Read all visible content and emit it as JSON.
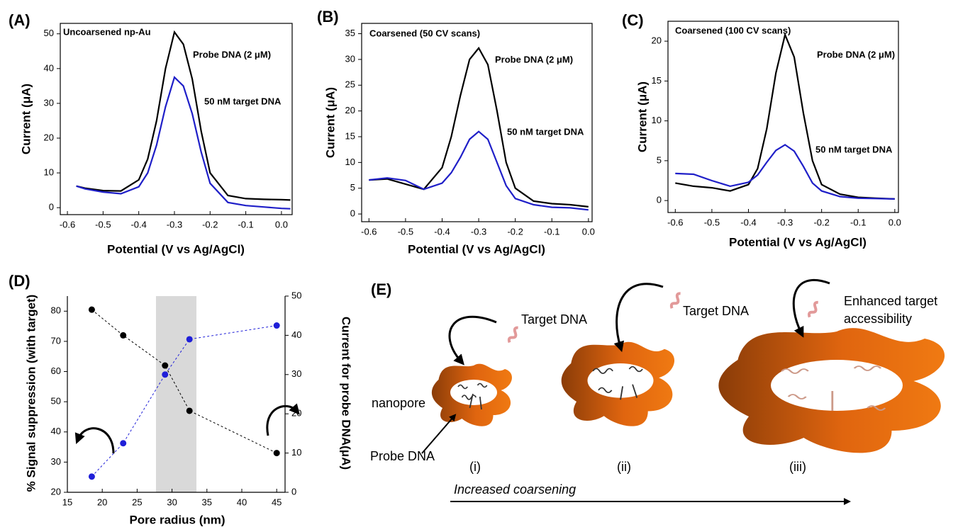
{
  "chart_data": [
    {
      "type": "line",
      "label": "(A)",
      "title": "Uncoarsened np-Au",
      "annotations": [
        "Probe DNA (2 μM)",
        "50 nM target DNA"
      ],
      "xlabel": "Potential (V vs Ag/AgCl)",
      "ylabel": "Current (μA)",
      "x": [
        -0.575,
        -0.55,
        -0.5,
        -0.45,
        -0.4,
        -0.375,
        -0.35,
        -0.325,
        -0.3,
        -0.275,
        -0.25,
        -0.225,
        -0.2,
        -0.15,
        -0.1,
        -0.05,
        0,
        0.025
      ],
      "series": [
        {
          "color": "#000000",
          "values": [
            6.2,
            5.6,
            4.9,
            4.8,
            8,
            14,
            25,
            40,
            50.5,
            47,
            37,
            22,
            10,
            3.5,
            2.6,
            2.4,
            2.3,
            2.2
          ]
        },
        {
          "color": "#1f1fc8",
          "values": [
            6.2,
            5.4,
            4.5,
            4.0,
            6,
            10,
            18,
            29,
            37.5,
            35,
            27,
            16,
            7,
            1.5,
            0.6,
            0.2,
            -0.2,
            -0.3
          ]
        }
      ],
      "xlim": [
        -0.62,
        0.03
      ],
      "ylim": [
        -2,
        53
      ],
      "xticks": [
        -0.6,
        -0.5,
        -0.4,
        -0.3,
        -0.2,
        -0.1,
        {
          "value": 0,
          "label": "0.0"
        }
      ],
      "yticks": [
        0,
        10,
        20,
        30,
        40,
        50
      ]
    },
    {
      "type": "line",
      "label": "(B)",
      "title": "Coarsened (50 CV scans)",
      "annotations": [
        "Probe DNA (2 μM)",
        "50 nM target DNA"
      ],
      "xlabel": "Potential (V vs Ag/AgCl)",
      "ylabel": "Current (μA)",
      "x": [
        -0.6,
        -0.55,
        -0.5,
        -0.45,
        -0.4,
        -0.375,
        -0.35,
        -0.325,
        -0.3,
        -0.275,
        -0.25,
        -0.225,
        -0.2,
        -0.15,
        -0.1,
        -0.05,
        0
      ],
      "series": [
        {
          "color": "#000000",
          "values": [
            6.6,
            6.8,
            5.8,
            4.8,
            9,
            15,
            23,
            30,
            32.2,
            29,
            20,
            10,
            5,
            2.5,
            2,
            1.8,
            1.4
          ]
        },
        {
          "color": "#1f1fc8",
          "values": [
            6.6,
            7,
            6.5,
            4.8,
            6,
            8,
            11,
            14.5,
            16,
            14.5,
            10,
            5.5,
            3,
            1.8,
            1.3,
            1.2,
            0.8
          ]
        }
      ],
      "xlim": [
        -0.62,
        0.01
      ],
      "ylim": [
        -1.5,
        37
      ],
      "xticks": [
        -0.6,
        -0.5,
        -0.4,
        -0.3,
        -0.2,
        -0.1,
        {
          "value": 0,
          "label": "0.0"
        }
      ],
      "yticks": [
        0,
        5,
        10,
        15,
        20,
        25,
        30,
        35
      ]
    },
    {
      "type": "line",
      "label": "(C)",
      "title": "Coarsened (100 CV scans)",
      "annotations": [
        "Probe DNA (2 μM)",
        "50 nM target DNA"
      ],
      "xlabel": "Potential (V vs Ag/AgCl)",
      "ylabel": "Current (μA)",
      "x": [
        -0.6,
        -0.55,
        -0.5,
        -0.45,
        -0.4,
        -0.375,
        -0.35,
        -0.325,
        -0.3,
        -0.275,
        -0.25,
        -0.225,
        -0.2,
        -0.15,
        -0.1,
        -0.05,
        0
      ],
      "series": [
        {
          "color": "#000000",
          "values": [
            2.2,
            1.8,
            1.6,
            1.2,
            2,
            4,
            9,
            16,
            20.8,
            18,
            11,
            5,
            2,
            0.8,
            0.4,
            0.3,
            0.2
          ]
        },
        {
          "color": "#1f1fc8",
          "values": [
            3.4,
            3.3,
            2.5,
            1.8,
            2.3,
            3.2,
            4.8,
            6.3,
            7,
            6.2,
            4.3,
            2.2,
            1.2,
            0.5,
            0.3,
            0.25,
            0.2
          ]
        }
      ],
      "xlim": [
        -0.62,
        0.01
      ],
      "ylim": [
        -1.5,
        22.5
      ],
      "xticks": [
        -0.6,
        -0.5,
        -0.4,
        -0.3,
        -0.2,
        -0.1,
        {
          "value": 0,
          "label": "0.0"
        }
      ],
      "yticks": [
        0,
        5,
        10,
        15,
        20
      ]
    },
    {
      "type": "scatter",
      "label": "(D)",
      "xlabel": "Pore radius (nm)",
      "ylabel": "% Signal suppression (with target)",
      "y2label": "Current for probe DNA(μA)",
      "x": [
        18.5,
        23,
        29,
        32.5,
        45
      ],
      "series": [
        {
          "color": "#000000",
          "values": [
            80.5,
            72,
            62,
            47,
            33
          ]
        },
        {
          "color": "#1f1fd8",
          "axis": "y2",
          "values": [
            4,
            12.5,
            30,
            39,
            42.5
          ]
        }
      ],
      "shaded_xrange": [
        27.7,
        33.5
      ],
      "xlim": [
        15,
        46.2
      ],
      "ylim": [
        20,
        85
      ],
      "y2lim": [
        0,
        50
      ],
      "xticks": [
        15,
        20,
        25,
        30,
        35,
        40,
        45
      ],
      "yticks": [
        20,
        30,
        40,
        50,
        60,
        70,
        80
      ],
      "y2ticks": [
        0,
        10,
        20,
        30,
        40,
        50
      ]
    }
  ],
  "diagram": {
    "label": "(E)",
    "target_dna": [
      "Target DNA",
      "Target DNA"
    ],
    "enhanced": [
      "Enhanced target",
      "accessibility"
    ],
    "nanopore": "nanopore",
    "probe_dna": "Probe DNA",
    "stages": [
      "(i)",
      "(ii)",
      "(iii)"
    ],
    "arrow_label": "Increased coarsening"
  }
}
